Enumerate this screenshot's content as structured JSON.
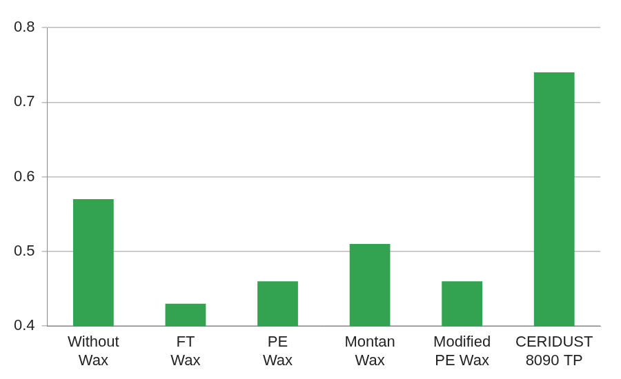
{
  "chart_data": {
    "type": "bar",
    "categories": [
      "Without Wax",
      "FT Wax",
      "PE Wax",
      "Montan Wax",
      "Modified PE Wax",
      "CERIDUST 8090 TP"
    ],
    "values": [
      0.57,
      0.43,
      0.46,
      0.51,
      0.46,
      0.74
    ],
    "color": "#33a352",
    "ylim": [
      0.4,
      0.8
    ],
    "yticks": [
      0.4,
      0.5,
      0.6,
      0.7,
      0.8
    ],
    "grid": true
  }
}
